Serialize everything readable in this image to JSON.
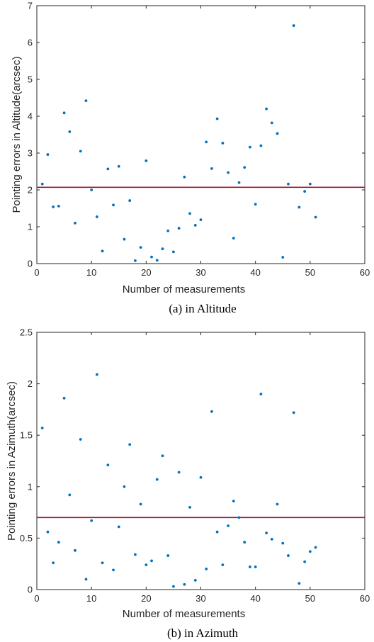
{
  "chart_data": [
    {
      "type": "scatter",
      "caption": "(a) in Altitude",
      "xlabel": "Number of measurements",
      "ylabel": "Pointing errors in Altitude(arcsec)",
      "xlim": [
        0,
        60
      ],
      "ylim": [
        0,
        7
      ],
      "xticks": [
        0,
        10,
        20,
        30,
        40,
        50,
        60
      ],
      "yticks": [
        0,
        1,
        2,
        3,
        4,
        5,
        6,
        7
      ],
      "grid": false,
      "point_color": "#0072BD",
      "mean_line": {
        "y": 2.07,
        "color": "#A2142F"
      },
      "x": [
        1,
        2,
        3,
        4,
        5,
        6,
        7,
        8,
        9,
        10,
        11,
        12,
        13,
        14,
        15,
        16,
        17,
        18,
        19,
        20,
        21,
        22,
        23,
        24,
        25,
        26,
        27,
        28,
        29,
        30,
        31,
        32,
        33,
        34,
        35,
        36,
        37,
        38,
        39,
        40,
        41,
        42,
        43,
        44,
        45,
        46,
        47,
        48,
        49,
        50,
        51
      ],
      "y": [
        2.16,
        2.96,
        1.54,
        1.56,
        4.09,
        3.58,
        1.1,
        3.05,
        4.42,
        2.0,
        1.27,
        0.34,
        2.57,
        1.59,
        2.64,
        0.66,
        1.71,
        0.08,
        0.44,
        2.79,
        0.18,
        0.09,
        0.4,
        0.89,
        0.32,
        0.96,
        2.35,
        1.36,
        1.04,
        1.19,
        3.3,
        2.58,
        3.93,
        3.27,
        2.47,
        0.69,
        2.2,
        2.61,
        3.16,
        1.61,
        3.2,
        4.2,
        3.82,
        3.53,
        0.17,
        2.16,
        6.46,
        1.53,
        1.96,
        2.16,
        1.26
      ]
    },
    {
      "type": "scatter",
      "caption": "(b) in Azimuth",
      "xlabel": "Number of measurements",
      "ylabel": "Pointing errors in Azimuth(arcsec)",
      "xlim": [
        0,
        60
      ],
      "ylim": [
        0,
        2.5
      ],
      "xticks": [
        0,
        10,
        20,
        30,
        40,
        50,
        60
      ],
      "yticks": [
        0,
        0.5,
        1,
        1.5,
        2,
        2.5
      ],
      "grid": false,
      "point_color": "#0072BD",
      "mean_line": {
        "y": 0.7,
        "color": "#A2142F"
      },
      "x": [
        1,
        2,
        3,
        4,
        5,
        6,
        7,
        8,
        9,
        10,
        11,
        12,
        13,
        14,
        15,
        16,
        17,
        18,
        19,
        20,
        21,
        22,
        23,
        24,
        25,
        26,
        27,
        28,
        29,
        30,
        31,
        32,
        33,
        34,
        35,
        36,
        37,
        38,
        39,
        40,
        41,
        42,
        43,
        44,
        45,
        46,
        47,
        48,
        49,
        50,
        51
      ],
      "y": [
        1.57,
        0.56,
        0.26,
        0.46,
        1.86,
        0.92,
        0.38,
        1.46,
        0.1,
        0.67,
        2.09,
        0.26,
        1.21,
        0.19,
        0.61,
        1.0,
        1.41,
        0.34,
        0.83,
        0.24,
        0.28,
        1.07,
        1.3,
        0.33,
        0.03,
        1.14,
        0.05,
        0.8,
        0.09,
        1.09,
        0.2,
        1.73,
        0.56,
        0.24,
        0.62,
        0.86,
        0.7,
        0.46,
        0.22,
        0.22,
        1.9,
        0.55,
        0.49,
        0.83,
        0.45,
        0.33,
        1.72,
        0.06,
        0.27,
        0.37,
        0.41
      ]
    }
  ]
}
